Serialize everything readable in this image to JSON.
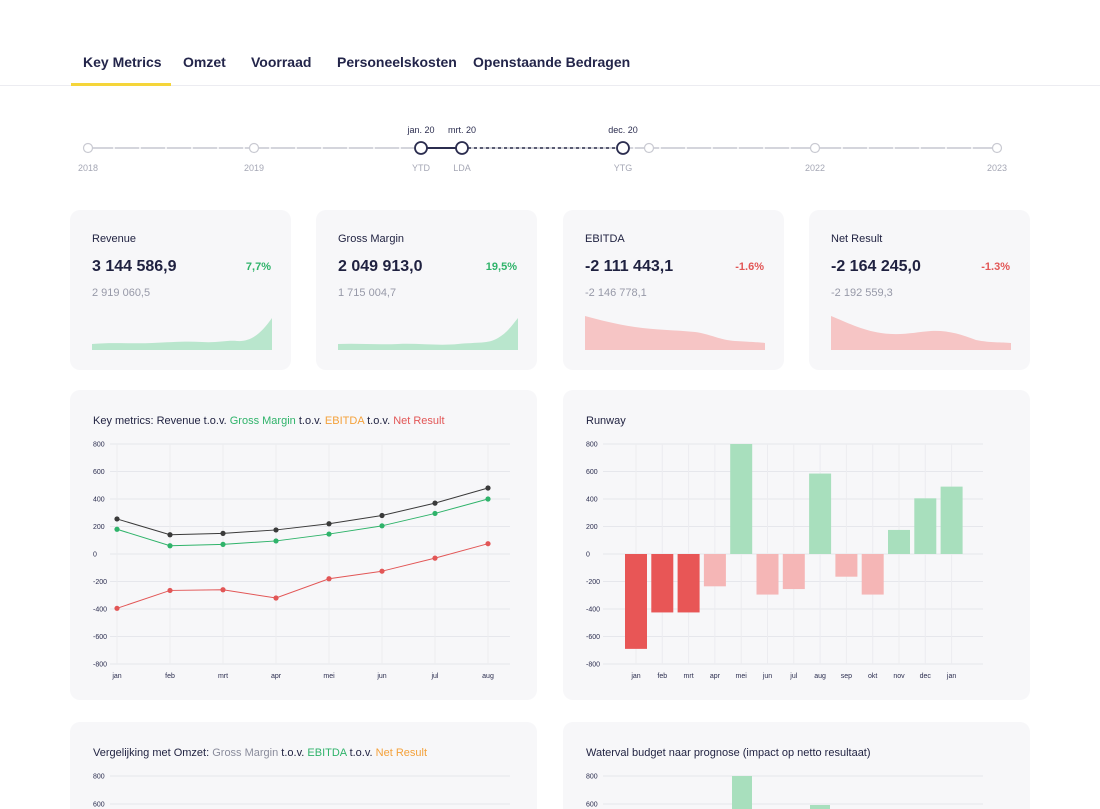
{
  "tabs": [
    {
      "label": "Key Metrics",
      "active": true
    },
    {
      "label": "Omzet",
      "active": false
    },
    {
      "label": "Voorraad",
      "active": false
    },
    {
      "label": "Personeelskosten",
      "active": false
    },
    {
      "label": "Openstaande Bedragen",
      "active": false
    }
  ],
  "accent_color": "#f5d53a",
  "timeline": {
    "ticks": [
      {
        "label": "2018"
      },
      {
        "label": "2019"
      },
      {
        "label": "YTD",
        "top": "jan. 20",
        "selected": true
      },
      {
        "label": "LDA",
        "top": "mrt. 20",
        "selected": true
      },
      {
        "label": "YTG",
        "top": "dec. 20",
        "selected": true
      },
      {
        "label": "2022"
      },
      {
        "label": "2023"
      }
    ]
  },
  "kpis": [
    {
      "title": "Revenue",
      "value": "3 144 586,9",
      "change": "7,7%",
      "trend": "up",
      "previous": "2 919 060,5",
      "spark_color": "#b9e6cd"
    },
    {
      "title": "Gross Margin",
      "value": "2 049 913,0",
      "change": "19,5%",
      "trend": "up",
      "previous": "1 715 004,7",
      "spark_color": "#b9e6cd"
    },
    {
      "title": "EBITDA",
      "value": "-2 111 443,1",
      "change": "-1.6%",
      "trend": "down",
      "previous": "-2 146 778,1",
      "spark_color": "#f6c5c5"
    },
    {
      "title": "Net Result",
      "value": "-2 164 245,0",
      "change": "-1.3%",
      "trend": "down",
      "previous": "-2 192 559,3",
      "spark_color": "#f6c5c5"
    }
  ],
  "key_metrics_title": {
    "part1": "Key metrics: Revenue t.o.v. ",
    "part2": "Gross Margin",
    "part3": " t.o.v. ",
    "part4": "EBITDA",
    "part5": " t.o.v. ",
    "part6": "Net Result"
  },
  "runway_title": "Runway",
  "vergelijking_title": {
    "part1": "Vergelijking met Omzet: ",
    "part2": "Gross Margin",
    "part3": " t.o.v. ",
    "part4": "EBITDA",
    "part5": " t.o.v. ",
    "part6": "Net Result"
  },
  "waterval_title": "Waterval budget naar prognose (impact op netto resultaat)",
  "chart_data": [
    {
      "type": "line",
      "x": [
        "jan",
        "feb",
        "mrt",
        "apr",
        "mei",
        "jun",
        "jul",
        "aug"
      ],
      "ylim": [
        -800,
        800
      ],
      "yticks": [
        800,
        600,
        400,
        200,
        0,
        -200,
        -400,
        -600,
        -800
      ],
      "series": [
        {
          "name": "Revenue",
          "color": "#3a3a3a",
          "values": [
            255,
            140,
            150,
            175,
            220,
            280,
            370,
            480
          ]
        },
        {
          "name": "Gross Margin",
          "color": "#2fb36a",
          "values": [
            180,
            60,
            70,
            95,
            145,
            205,
            295,
            400
          ]
        },
        {
          "name": "Net Result",
          "color": "#e25656",
          "values": [
            -395,
            -265,
            -260,
            -320,
            -180,
            -125,
            -30,
            75
          ]
        }
      ]
    },
    {
      "type": "bar",
      "categories": [
        "jan",
        "feb",
        "mrt",
        "apr",
        "mei",
        "jun",
        "jul",
        "aug",
        "sep",
        "okt",
        "nov",
        "dec",
        "jan"
      ],
      "values": [
        -690,
        -425,
        -425,
        -235,
        800,
        -295,
        -255,
        585,
        -165,
        -295,
        175,
        405,
        490
      ],
      "ylim": [
        -800,
        800
      ],
      "yticks": [
        800,
        600,
        400,
        200,
        0,
        -200,
        -400,
        -600,
        -800
      ],
      "bar_colors": [
        "#e85656",
        "#e85656",
        "#e85656",
        "#f5b6b6",
        "#a8dfbd",
        "#f5b6b6",
        "#f5b6b6",
        "#a8dfbd",
        "#f5b6b6",
        "#f5b6b6",
        "#a8dfbd",
        "#a8dfbd",
        "#a8dfbd"
      ]
    },
    {
      "type": "line",
      "yticks": [
        800,
        600
      ],
      "series": []
    },
    {
      "type": "bar",
      "yticks": [
        800,
        600
      ],
      "values": []
    }
  ]
}
